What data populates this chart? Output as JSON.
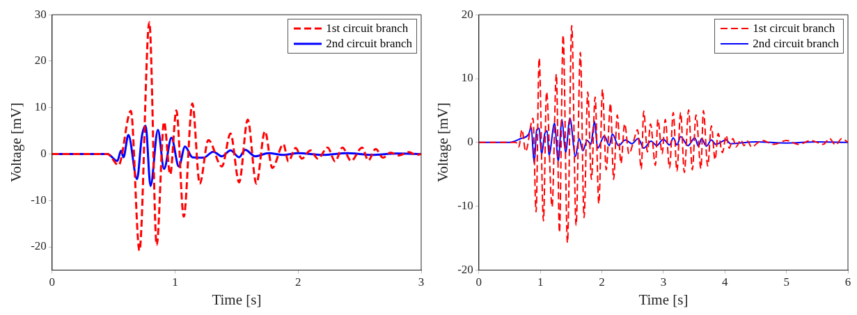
{
  "chart_data": [
    {
      "type": "line",
      "xlabel": "Time [s]",
      "ylabel": "Voltage [mV]",
      "xlim": [
        0,
        3
      ],
      "xticks": [
        0,
        1,
        2,
        3
      ],
      "ylim": [
        -25,
        30
      ],
      "yticks": [
        -20,
        -10,
        0,
        10,
        20,
        30
      ],
      "grid": false,
      "legend": "top right",
      "marker": "none",
      "series": [
        {
          "name": "1st circuit branch",
          "color": "#ff0000",
          "line_style": "dashed",
          "x": [
            0,
            0.45,
            0.54,
            0.64,
            0.71,
            0.79,
            0.85,
            0.91,
            0.96,
            1.01,
            1.07,
            1.14,
            1.2,
            1.27,
            1.38,
            1.45,
            1.52,
            1.59,
            1.66,
            1.73,
            1.79,
            1.88,
            1.92,
            1.98,
            2.03,
            2.1,
            2.16,
            2.24,
            2.3,
            2.36,
            2.43,
            2.52,
            2.57,
            2.63,
            2.69,
            2.75,
            2.82,
            2.9,
            2.96,
            3.0
          ],
          "values": [
            0,
            0,
            -2.4,
            9.3,
            -20.8,
            28.4,
            -19.6,
            6.9,
            -4.4,
            9.4,
            -13.5,
            10.9,
            -6.4,
            3.0,
            -2.7,
            4.4,
            -6.1,
            7.4,
            -6.4,
            4.9,
            -3.0,
            2.1,
            -1.6,
            1.3,
            -1.0,
            0.8,
            -1.0,
            1.4,
            -1.6,
            1.4,
            -1.5,
            1.4,
            -1.4,
            1.1,
            -0.8,
            0.3,
            -0.3,
            0.4,
            -0.2,
            0
          ]
        },
        {
          "name": "2nd circuit branch",
          "color": "#0000ff",
          "line_style": "solid",
          "x": [
            0,
            0.45,
            0.53,
            0.56,
            0.58,
            0.62,
            0.69,
            0.73,
            0.76,
            0.8,
            0.86,
            0.91,
            0.97,
            1.03,
            1.08,
            1.14,
            1.23,
            1.31,
            1.38,
            1.45,
            1.52,
            1.57,
            1.65,
            1.76,
            1.88,
            2.0,
            2.2,
            2.4,
            2.6,
            2.8,
            3.0
          ],
          "values": [
            0,
            0,
            -1.5,
            0.7,
            -0.7,
            4.1,
            -5.4,
            3.9,
            6.1,
            -6.9,
            5.2,
            -3.2,
            3.5,
            -2.7,
            1.6,
            -0.7,
            -0.8,
            0.5,
            -0.5,
            0.8,
            -0.7,
            0.9,
            -0.5,
            0.2,
            -0.2,
            0.2,
            -0.2,
            0.2,
            -0.2,
            0.1,
            0
          ]
        }
      ]
    },
    {
      "type": "line",
      "xlabel": "Time [s]",
      "ylabel": "Voltage [mV]",
      "xlim": [
        0,
        6
      ],
      "xticks": [
        0,
        1,
        2,
        3,
        4,
        5,
        6
      ],
      "ylim": [
        -20,
        20
      ],
      "yticks": [
        -20,
        -10,
        0,
        10,
        20
      ],
      "grid": false,
      "legend": "top right",
      "marker": "none",
      "series": [
        {
          "name": "1st circuit branch",
          "color": "#ff0000",
          "line_style": "dashed",
          "x": [
            0,
            0.6,
            0.65,
            0.7,
            0.76,
            0.88,
            0.93,
            0.98,
            1.05,
            1.1,
            1.19,
            1.26,
            1.31,
            1.37,
            1.44,
            1.51,
            1.58,
            1.65,
            1.71,
            1.77,
            1.83,
            1.89,
            1.95,
            2.01,
            2.07,
            2.14,
            2.19,
            2.25,
            2.31,
            2.37,
            2.44,
            2.51,
            2.58,
            2.64,
            2.68,
            2.74,
            2.79,
            2.87,
            2.91,
            2.98,
            3.03,
            3.1,
            3.16,
            3.22,
            3.28,
            3.34,
            3.41,
            3.47,
            3.53,
            3.61,
            3.65,
            3.72,
            3.78,
            3.84,
            3.89,
            3.96,
            4.02,
            4.07,
            4.13,
            4.18,
            4.26,
            4.31,
            4.37,
            4.43,
            4.6,
            4.8,
            5.0,
            5.2,
            5.4,
            5.6,
            5.7,
            5.8,
            5.9,
            6.0
          ],
          "values": [
            0,
            0,
            -0.7,
            2.0,
            -1.4,
            3.8,
            -10.9,
            13.2,
            -12.3,
            7.9,
            -10.1,
            10.7,
            -14.1,
            16.8,
            -15.7,
            18.3,
            -13.0,
            14.1,
            -11.8,
            7.9,
            -5.8,
            7.1,
            -9.6,
            8.3,
            -4.3,
            6.1,
            -5.8,
            4.3,
            -3.3,
            2.9,
            -1.8,
            0.0,
            2.0,
            -4.2,
            4.9,
            -1.5,
            2.9,
            -3.6,
            3.6,
            -1.8,
            3.6,
            -4.0,
            4.7,
            -4.5,
            4.7,
            -4.7,
            5.1,
            -4.3,
            4.3,
            -4.1,
            5.0,
            -3.7,
            2.6,
            -2.7,
            1.4,
            -1.6,
            1.1,
            -0.9,
            0.6,
            -0.7,
            0.4,
            -0.5,
            0.2,
            -0.7,
            0.3,
            -0.3,
            0.3,
            -0.3,
            0.3,
            -0.3,
            0.6,
            -0.4,
            0.6,
            0
          ]
        },
        {
          "name": "2nd circuit branch",
          "color": "#0000ff",
          "line_style": "solid",
          "x": [
            0,
            0.5,
            0.68,
            0.81,
            0.85,
            0.9,
            0.94,
            0.98,
            1.02,
            1.07,
            1.11,
            1.14,
            1.23,
            1.29,
            1.35,
            1.41,
            1.48,
            1.57,
            1.63,
            1.69,
            1.76,
            1.82,
            1.88,
            1.93,
            2.04,
            2.12,
            2.17,
            2.27,
            2.38,
            2.49,
            2.59,
            2.68,
            2.8,
            2.89,
            3.0,
            3.1,
            3.16,
            3.22,
            3.28,
            3.4,
            3.51,
            3.57,
            3.62,
            3.7,
            3.78,
            3.85,
            4.02,
            4.09,
            4.5,
            5.0,
            5.5,
            6.0
          ],
          "values": [
            0,
            0,
            0.6,
            1.3,
            2.4,
            -3.3,
            2.0,
            2.2,
            -1.9,
            1.3,
            1.8,
            -2.0,
            3.0,
            -2.9,
            3.6,
            -1.6,
            3.8,
            -2.2,
            0.6,
            -1.3,
            0.3,
            -0.3,
            3.3,
            -0.9,
            1.0,
            -0.5,
            1.3,
            -0.5,
            0.4,
            -0.2,
            0.6,
            -0.9,
            0.2,
            -0.5,
            0.5,
            -0.4,
            0.7,
            -0.4,
            0.9,
            -0.5,
            0.7,
            -0.6,
            0.6,
            -0.6,
            0.4,
            -0.3,
            0.4,
            -0.2,
            0.1,
            -0.1,
            0.1,
            0
          ]
        }
      ]
    }
  ]
}
